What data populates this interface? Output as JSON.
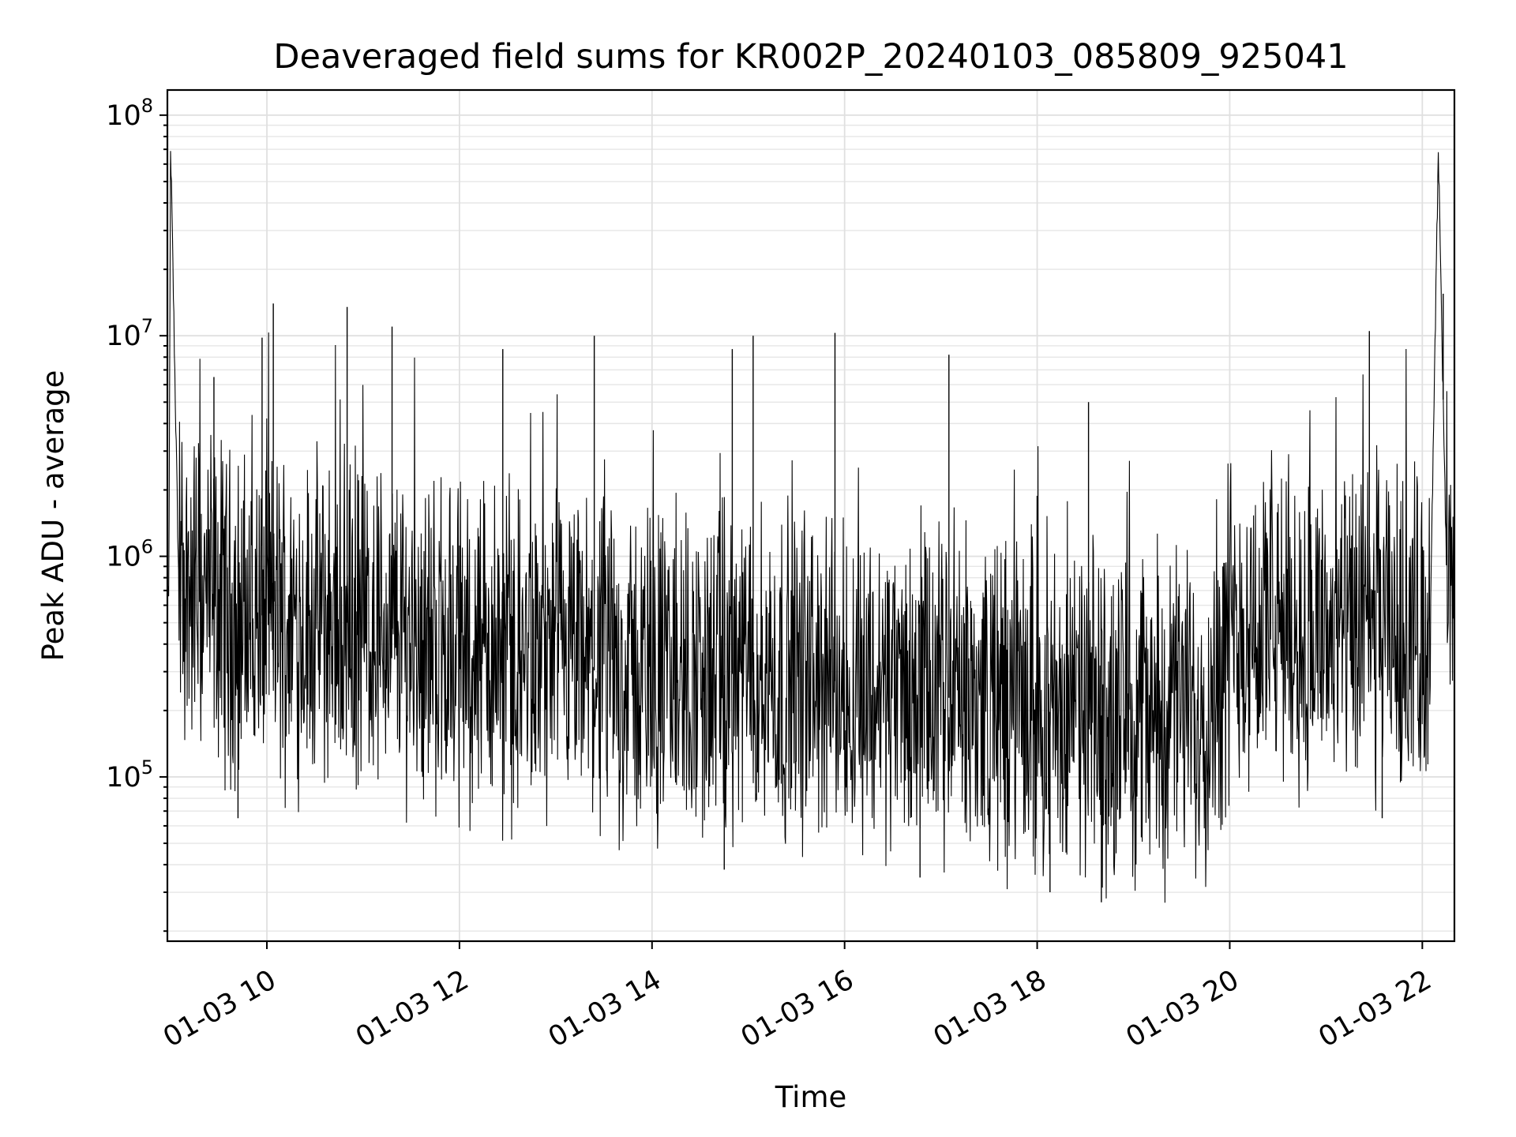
{
  "chart_data": {
    "type": "line",
    "title": "Deaveraged field sums for KR002P_20240103_085809_925041",
    "xlabel": "Time",
    "ylabel": "Peak ADU - average",
    "yscale": "log",
    "ylim": [
      18000,
      130000000
    ],
    "xlim": [
      "2024-01-03 08:58",
      "2024-01-03 22:20"
    ],
    "grid": true,
    "line_color": "#000000",
    "x_ticks": [
      {
        "label": "01-03 10",
        "time": "2024-01-03 10:00"
      },
      {
        "label": "01-03 12",
        "time": "2024-01-03 12:00"
      },
      {
        "label": "01-03 14",
        "time": "2024-01-03 14:00"
      },
      {
        "label": "01-03 16",
        "time": "2024-01-03 16:00"
      },
      {
        "label": "01-03 18",
        "time": "2024-01-03 18:00"
      },
      {
        "label": "01-03 20",
        "time": "2024-01-03 20:00"
      },
      {
        "label": "01-03 22",
        "time": "2024-01-03 22:00"
      }
    ],
    "y_ticks": [
      {
        "base": "10",
        "exp": "5",
        "value": 100000
      },
      {
        "base": "10",
        "exp": "6",
        "value": 1000000
      },
      {
        "base": "10",
        "exp": "7",
        "value": 10000000
      },
      {
        "base": "10",
        "exp": "8",
        "value": 100000000
      }
    ],
    "series": [
      {
        "x": [
          "2024-01-03 08:59",
          "2024-01-03 09:00",
          "2024-01-03 09:05",
          "2024-01-03 09:15",
          "2024-01-03 09:30",
          "2024-01-03 09:45",
          "2024-01-03 10:00",
          "2024-01-03 10:30",
          "2024-01-03 11:00",
          "2024-01-03 11:30",
          "2024-01-03 12:00",
          "2024-01-03 12:30",
          "2024-01-03 13:00",
          "2024-01-03 13:30",
          "2024-01-03 14:00",
          "2024-01-03 14:30",
          "2024-01-03 15:00",
          "2024-01-03 15:30",
          "2024-01-03 16:00",
          "2024-01-03 16:30",
          "2024-01-03 17:00",
          "2024-01-03 17:30",
          "2024-01-03 18:00",
          "2024-01-03 18:30",
          "2024-01-03 19:00",
          "2024-01-03 19:30",
          "2024-01-03 19:50",
          "2024-01-03 20:00",
          "2024-01-03 20:30",
          "2024-01-03 21:00",
          "2024-01-03 21:30",
          "2024-01-03 21:55",
          "2024-01-03 22:05",
          "2024-01-03 22:10",
          "2024-01-03 22:15",
          "2024-01-03 22:20"
        ],
        "values": [
          1000000,
          75000000,
          800000,
          700000,
          600000,
          500000,
          550000,
          500000,
          500000,
          450000,
          380000,
          350000,
          320000,
          300000,
          300000,
          280000,
          300000,
          280000,
          270000,
          250000,
          230000,
          220000,
          200000,
          190000,
          190000,
          200000,
          210000,
          500000,
          480000,
          450000,
          420000,
          450000,
          500000,
          70000000,
          900000,
          700000
        ],
        "spikes": [
          {
            "x": "2024-01-03 09:27",
            "value": 6500000
          },
          {
            "x": "2024-01-03 09:57",
            "value": 9800000
          },
          {
            "x": "2024-01-03 10:04",
            "value": 14000000
          },
          {
            "x": "2024-01-03 10:50",
            "value": 13500000
          },
          {
            "x": "2024-01-03 11:18",
            "value": 11000000
          },
          {
            "x": "2024-01-03 12:27",
            "value": 8700000
          },
          {
            "x": "2024-01-03 13:24",
            "value": 10000000
          },
          {
            "x": "2024-01-03 14:50",
            "value": 8700000
          },
          {
            "x": "2024-01-03 15:03",
            "value": 10000000
          },
          {
            "x": "2024-01-03 15:54",
            "value": 10300000
          },
          {
            "x": "2024-01-03 17:05",
            "value": 8200000
          },
          {
            "x": "2024-01-03 18:32",
            "value": 5000000
          },
          {
            "x": "2024-01-03 21:27",
            "value": 10500000
          },
          {
            "x": "2024-01-03 22:13",
            "value": 15500000
          }
        ],
        "dips": [
          {
            "x": "2024-01-03 09:42",
            "value": 65000
          },
          {
            "x": "2024-01-03 14:45",
            "value": 38000
          },
          {
            "x": "2024-01-03 16:47",
            "value": 35000
          },
          {
            "x": "2024-01-03 18:08",
            "value": 30000
          },
          {
            "x": "2024-01-03 18:40",
            "value": 27000
          },
          {
            "x": "2024-01-03 21:35",
            "value": 65000
          }
        ]
      }
    ]
  }
}
